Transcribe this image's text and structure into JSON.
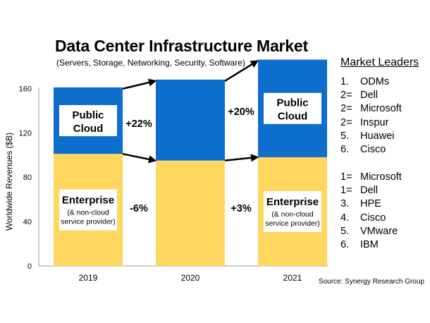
{
  "chart_data": {
    "type": "bar",
    "stacked": true,
    "title": "Data Center Infrastructure Market",
    "subtitle": "(Servers, Storage, Networking, Security, Software)",
    "xlabel": "",
    "ylabel": "Worldwide Revenues ($B)",
    "ylim": [
      0,
      180
    ],
    "yticks": [
      0,
      40,
      80,
      120,
      160
    ],
    "categories": [
      "2019",
      "2020",
      "2021"
    ],
    "series": [
      {
        "name": "Enterprise",
        "label_line1": "Enterprise",
        "label_sub": [
          "(& non-cloud",
          "service provider)"
        ],
        "color": "#FFD75F",
        "values": [
          101,
          95,
          98
        ]
      },
      {
        "name": "Public Cloud",
        "label_line1": "Public",
        "label_line2": "Cloud",
        "color": "#0E6ECD",
        "values": [
          60,
          73,
          88
        ]
      }
    ],
    "annotations": [
      {
        "text": "+22%",
        "series": "Public Cloud",
        "between": [
          "2019",
          "2020"
        ]
      },
      {
        "text": "-6%",
        "series": "Enterprise",
        "between": [
          "2019",
          "2020"
        ]
      },
      {
        "text": "+20%",
        "series": "Public Cloud",
        "between": [
          "2020",
          "2021"
        ]
      },
      {
        "text": "+3%",
        "series": "Enterprise",
        "between": [
          "2020",
          "2021"
        ]
      }
    ],
    "source": "Source: Synergy Research Group"
  },
  "market_leaders": {
    "title": "Market Leaders",
    "public_cloud": [
      {
        "rank": "1.",
        "name": "ODMs"
      },
      {
        "rank": "2=",
        "name": "Dell"
      },
      {
        "rank": "2=",
        "name": "Microsoft"
      },
      {
        "rank": "2=",
        "name": "Inspur"
      },
      {
        "rank": "5.",
        "name": "Huawei"
      },
      {
        "rank": "6.",
        "name": "Cisco"
      }
    ],
    "enterprise": [
      {
        "rank": "1=",
        "name": "Microsoft"
      },
      {
        "rank": "1=",
        "name": "Dell"
      },
      {
        "rank": "3.",
        "name": "HPE"
      },
      {
        "rank": "4.",
        "name": "Cisco"
      },
      {
        "rank": "5.",
        "name": "VMware"
      },
      {
        "rank": "6.",
        "name": "IBM"
      }
    ]
  }
}
